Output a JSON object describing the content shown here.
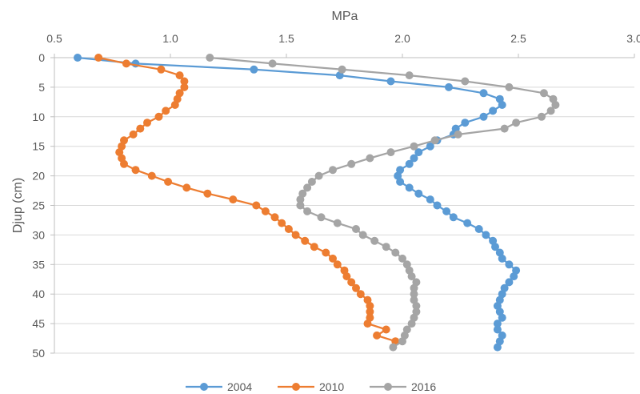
{
  "chart_data": {
    "type": "line",
    "title": "",
    "xlabel": "MPa",
    "ylabel": "Djup (cm)",
    "x_axis_position": "top",
    "y_axis_reversed": true,
    "xlim": [
      0.5,
      3.0
    ],
    "ylim": [
      0,
      50
    ],
    "x_ticks": [
      "0.5",
      "1.0",
      "1.5",
      "2.0",
      "2.5",
      "3.0"
    ],
    "y_ticks": [
      "0",
      "5",
      "10",
      "15",
      "20",
      "25",
      "30",
      "35",
      "40",
      "45",
      "50"
    ],
    "grid": "horizontal",
    "legend_position": "bottom",
    "series": [
      {
        "name": "2004",
        "color": "#5B9BD5",
        "points": [
          [
            0.6,
            0
          ],
          [
            0.85,
            1
          ],
          [
            1.36,
            2
          ],
          [
            1.73,
            3
          ],
          [
            1.95,
            4
          ],
          [
            2.2,
            5
          ],
          [
            2.35,
            6
          ],
          [
            2.42,
            7
          ],
          [
            2.43,
            8
          ],
          [
            2.39,
            9
          ],
          [
            2.35,
            10
          ],
          [
            2.27,
            11
          ],
          [
            2.23,
            12
          ],
          [
            2.22,
            13
          ],
          [
            2.15,
            14
          ],
          [
            2.12,
            15
          ],
          [
            2.07,
            16
          ],
          [
            2.05,
            17
          ],
          [
            2.03,
            18
          ],
          [
            1.99,
            19
          ],
          [
            1.98,
            20
          ],
          [
            1.99,
            21
          ],
          [
            2.03,
            22
          ],
          [
            2.07,
            23
          ],
          [
            2.12,
            24
          ],
          [
            2.15,
            25
          ],
          [
            2.19,
            26
          ],
          [
            2.22,
            27
          ],
          [
            2.28,
            28
          ],
          [
            2.33,
            29
          ],
          [
            2.36,
            30
          ],
          [
            2.39,
            31
          ],
          [
            2.4,
            32
          ],
          [
            2.42,
            33
          ],
          [
            2.43,
            34
          ],
          [
            2.46,
            35
          ],
          [
            2.49,
            36
          ],
          [
            2.48,
            37
          ],
          [
            2.46,
            38
          ],
          [
            2.44,
            39
          ],
          [
            2.43,
            40
          ],
          [
            2.42,
            41
          ],
          [
            2.41,
            42
          ],
          [
            2.42,
            43
          ],
          [
            2.43,
            44
          ],
          [
            2.41,
            45
          ],
          [
            2.41,
            46
          ],
          [
            2.43,
            47
          ],
          [
            2.42,
            48
          ],
          [
            2.41,
            49
          ]
        ]
      },
      {
        "name": "2010",
        "color": "#ED7D31",
        "points": [
          [
            0.69,
            0
          ],
          [
            0.81,
            1
          ],
          [
            0.96,
            2
          ],
          [
            1.04,
            3
          ],
          [
            1.06,
            4
          ],
          [
            1.06,
            5
          ],
          [
            1.04,
            6
          ],
          [
            1.03,
            7
          ],
          [
            1.02,
            8
          ],
          [
            0.98,
            9
          ],
          [
            0.95,
            10
          ],
          [
            0.9,
            11
          ],
          [
            0.87,
            12
          ],
          [
            0.84,
            13
          ],
          [
            0.8,
            14
          ],
          [
            0.79,
            15
          ],
          [
            0.78,
            16
          ],
          [
            0.79,
            17
          ],
          [
            0.8,
            18
          ],
          [
            0.85,
            19
          ],
          [
            0.92,
            20
          ],
          [
            0.99,
            21
          ],
          [
            1.07,
            22
          ],
          [
            1.16,
            23
          ],
          [
            1.27,
            24
          ],
          [
            1.37,
            25
          ],
          [
            1.41,
            26
          ],
          [
            1.45,
            27
          ],
          [
            1.48,
            28
          ],
          [
            1.51,
            29
          ],
          [
            1.54,
            30
          ],
          [
            1.58,
            31
          ],
          [
            1.62,
            32
          ],
          [
            1.67,
            33
          ],
          [
            1.7,
            34
          ],
          [
            1.72,
            35
          ],
          [
            1.75,
            36
          ],
          [
            1.76,
            37
          ],
          [
            1.78,
            38
          ],
          [
            1.8,
            39
          ],
          [
            1.82,
            40
          ],
          [
            1.85,
            41
          ],
          [
            1.86,
            42
          ],
          [
            1.86,
            43
          ],
          [
            1.86,
            44
          ],
          [
            1.85,
            45
          ],
          [
            1.93,
            46
          ],
          [
            1.89,
            47
          ],
          [
            1.97,
            48
          ]
        ]
      },
      {
        "name": "2016",
        "color": "#A5A5A5",
        "points": [
          [
            1.17,
            0
          ],
          [
            1.44,
            1
          ],
          [
            1.74,
            2
          ],
          [
            2.03,
            3
          ],
          [
            2.27,
            4
          ],
          [
            2.46,
            5
          ],
          [
            2.61,
            6
          ],
          [
            2.65,
            7
          ],
          [
            2.66,
            8
          ],
          [
            2.64,
            9
          ],
          [
            2.6,
            10
          ],
          [
            2.49,
            11
          ],
          [
            2.44,
            12
          ],
          [
            2.24,
            13
          ],
          [
            2.14,
            14
          ],
          [
            2.05,
            15
          ],
          [
            1.95,
            16
          ],
          [
            1.86,
            17
          ],
          [
            1.78,
            18
          ],
          [
            1.7,
            19
          ],
          [
            1.64,
            20
          ],
          [
            1.61,
            21
          ],
          [
            1.59,
            22
          ],
          [
            1.57,
            23
          ],
          [
            1.56,
            24
          ],
          [
            1.56,
            25
          ],
          [
            1.59,
            26
          ],
          [
            1.65,
            27
          ],
          [
            1.72,
            28
          ],
          [
            1.8,
            29
          ],
          [
            1.83,
            30
          ],
          [
            1.88,
            31
          ],
          [
            1.93,
            32
          ],
          [
            1.97,
            33
          ],
          [
            2.0,
            34
          ],
          [
            2.02,
            35
          ],
          [
            2.03,
            36
          ],
          [
            2.04,
            37
          ],
          [
            2.06,
            38
          ],
          [
            2.05,
            39
          ],
          [
            2.05,
            40
          ],
          [
            2.05,
            41
          ],
          [
            2.06,
            42
          ],
          [
            2.06,
            43
          ],
          [
            2.05,
            44
          ],
          [
            2.04,
            45
          ],
          [
            2.02,
            46
          ],
          [
            2.01,
            47
          ],
          [
            2.0,
            48
          ],
          [
            1.96,
            49
          ]
        ]
      }
    ]
  }
}
